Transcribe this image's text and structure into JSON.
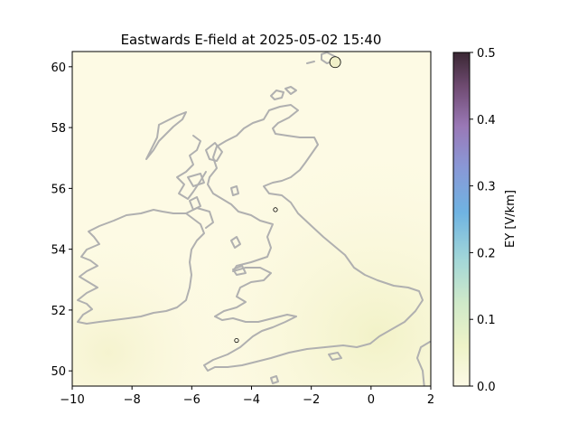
{
  "chart_data": {
    "type": "heatmap",
    "title": "Eastwards E-field at 2025-05-02 15:40",
    "xlim": [
      -10,
      2
    ],
    "ylim": [
      49.5,
      60.5
    ],
    "x_ticks": [
      -10,
      -8,
      -6,
      -4,
      -2,
      0,
      2
    ],
    "x_tick_labels": [
      "−10",
      "−8",
      "−6",
      "−4",
      "−2",
      "0",
      "2"
    ],
    "y_ticks": [
      50,
      52,
      54,
      56,
      58,
      60
    ],
    "y_tick_labels": [
      "50",
      "52",
      "54",
      "56",
      "58",
      "60"
    ],
    "colorbar": {
      "label": "EY [V/km]",
      "range": [
        0.0,
        0.5
      ],
      "ticks": [
        0.0,
        0.1,
        0.2,
        0.3,
        0.4,
        0.5
      ],
      "tick_labels": [
        "0.0",
        "0.1",
        "0.2",
        "0.3",
        "0.4",
        "0.5"
      ],
      "colormap": [
        "#fcf9e5",
        "#e9f0c3",
        "#bfe2ca",
        "#6fb5e0",
        "#8c94d5",
        "#9d6aa8",
        "#6e3d68",
        "#3a2030"
      ]
    },
    "field_level": "near 0.0-0.05 V/km over the whole map",
    "markers": [
      {
        "lon": -1.2,
        "lat": 60.15,
        "value": "larger"
      },
      {
        "lon": -3.2,
        "lat": 55.3,
        "value": "small"
      },
      {
        "lon": -4.5,
        "lat": 51.0,
        "value": "small"
      }
    ],
    "grid": false
  },
  "colors": {
    "background": "#fdfae4",
    "coastline": "#b0b0b0"
  }
}
